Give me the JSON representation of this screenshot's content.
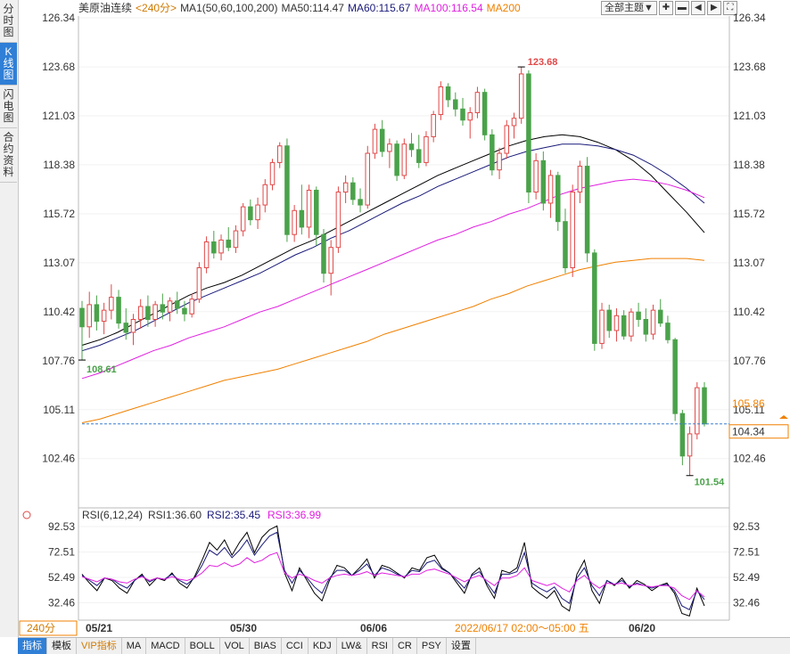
{
  "side_tabs": [
    "分时图",
    "K线图",
    "闪电图",
    "合约资料"
  ],
  "header": {
    "instrument": "美原油连续",
    "period": "<240分>",
    "ma_label": "MA1(50,60,100,200)",
    "ma50": "MA50:114.47",
    "ma60": "MA60:115.67",
    "ma100": "MA100:116.54",
    "ma200": "MA200",
    "theme_button": "全部主题▼"
  },
  "rsi_header": {
    "label": "RSI(6,12,24)",
    "rsi1": "RSI1:36.60",
    "rsi2": "RSI2:35.45",
    "rsi3": "RSI3:36.99"
  },
  "price_ticks": [
    "126.34",
    "123.68",
    "121.03",
    "118.38",
    "115.72",
    "113.07",
    "110.42",
    "107.76",
    "105.11",
    "102.46"
  ],
  "rsi_ticks": [
    "92.53",
    "72.51",
    "52.49",
    "32.46"
  ],
  "annotations": {
    "high": "123.68",
    "low": "101.54",
    "local_low": "108.61",
    "right_label_upper": "105.86",
    "last_price": "104.34"
  },
  "x_labels": {
    "period_button": "240分",
    "d1": "05/21",
    "d2": "05/30",
    "d3": "06/06",
    "cursor_time": "2022/06/17 02:00～05:00 五",
    "d4": "06/20"
  },
  "bottom_tabs": [
    "指标",
    "模板",
    "VIP指标",
    "MA",
    "MACD",
    "BOLL",
    "VOL",
    "BIAS",
    "CCI",
    "KDJ",
    "LW&",
    "RSI",
    "CR",
    "PSY",
    "设置"
  ],
  "colors": {
    "up": "#e04848",
    "down": "#4aa24a",
    "ma50": "#000000",
    "ma60": "#1a1a7a",
    "ma100": "#e020e0",
    "ma200": "#f08000",
    "high_label": "#e04848",
    "low_label": "#4aa24a",
    "last_price_line": "#3a7fd0"
  },
  "chart_data": {
    "type": "candlestick",
    "y_range": [
      101.0,
      127.0
    ],
    "last_price": 104.34,
    "x_dates": [
      "05/21",
      "05/30",
      "06/06",
      "06/20"
    ],
    "candles_ohlc": [
      [
        110.6,
        111.0,
        107.8,
        109.6
      ],
      [
        109.6,
        111.5,
        109.0,
        110.8
      ],
      [
        110.8,
        111.3,
        109.4,
        109.9
      ],
      [
        109.9,
        110.9,
        109.2,
        110.5
      ],
      [
        110.5,
        111.9,
        110.0,
        111.2
      ],
      [
        111.2,
        111.6,
        109.5,
        109.8
      ],
      [
        109.8,
        110.6,
        108.9,
        109.3
      ],
      [
        109.3,
        110.3,
        108.61,
        110.0
      ],
      [
        110.0,
        111.1,
        109.5,
        110.7
      ],
      [
        110.7,
        111.3,
        109.6,
        110.0
      ],
      [
        110.0,
        111.0,
        109.6,
        110.8
      ],
      [
        110.8,
        111.4,
        110.0,
        110.4
      ],
      [
        110.4,
        111.2,
        109.9,
        111.0
      ],
      [
        111.0,
        111.5,
        110.3,
        110.6
      ],
      [
        110.6,
        111.0,
        109.9,
        110.3
      ],
      [
        110.3,
        111.4,
        110.1,
        111.1
      ],
      [
        111.1,
        113.1,
        110.9,
        112.8
      ],
      [
        112.8,
        114.5,
        112.5,
        114.2
      ],
      [
        114.2,
        114.8,
        113.3,
        113.6
      ],
      [
        113.6,
        114.6,
        113.2,
        114.3
      ],
      [
        114.3,
        115.0,
        113.7,
        113.9
      ],
      [
        113.9,
        115.1,
        113.6,
        114.8
      ],
      [
        114.8,
        116.3,
        114.5,
        116.1
      ],
      [
        116.1,
        116.5,
        115.1,
        115.4
      ],
      [
        115.4,
        116.6,
        114.9,
        116.2
      ],
      [
        116.2,
        117.6,
        115.8,
        117.3
      ],
      [
        117.3,
        118.7,
        117.0,
        118.5
      ],
      [
        118.5,
        119.6,
        118.2,
        119.4
      ],
      [
        119.4,
        119.8,
        114.2,
        114.6
      ],
      [
        114.6,
        116.2,
        114.2,
        115.9
      ],
      [
        115.9,
        117.3,
        114.6,
        115.0
      ],
      [
        115.0,
        117.3,
        114.4,
        117.0
      ],
      [
        117.0,
        117.2,
        114.0,
        114.6
      ],
      [
        114.6,
        114.9,
        112.0,
        112.5
      ],
      [
        112.5,
        114.3,
        111.3,
        113.9
      ],
      [
        113.9,
        117.2,
        113.6,
        116.9
      ],
      [
        116.9,
        117.8,
        116.3,
        117.4
      ],
      [
        117.4,
        117.7,
        116.2,
        116.5
      ],
      [
        116.5,
        117.1,
        115.8,
        116.2
      ],
      [
        116.2,
        119.4,
        116.0,
        119.0
      ],
      [
        119.0,
        120.6,
        118.7,
        120.3
      ],
      [
        120.3,
        120.8,
        118.8,
        119.1
      ],
      [
        119.1,
        119.8,
        118.2,
        119.5
      ],
      [
        119.5,
        119.7,
        117.5,
        117.8
      ],
      [
        117.8,
        119.8,
        117.6,
        119.5
      ],
      [
        119.5,
        120.1,
        118.8,
        119.2
      ],
      [
        119.2,
        120.0,
        118.2,
        118.5
      ],
      [
        118.5,
        120.2,
        118.3,
        119.9
      ],
      [
        119.9,
        121.3,
        119.6,
        121.1
      ],
      [
        121.1,
        122.9,
        120.8,
        122.6
      ],
      [
        122.6,
        122.8,
        121.5,
        121.9
      ],
      [
        121.9,
        122.3,
        121.0,
        121.4
      ],
      [
        121.4,
        122.0,
        120.5,
        120.8
      ],
      [
        120.8,
        121.5,
        119.8,
        121.2
      ],
      [
        121.2,
        122.6,
        120.9,
        122.3
      ],
      [
        122.3,
        122.5,
        119.7,
        120.0
      ],
      [
        120.0,
        120.3,
        117.8,
        118.1
      ],
      [
        118.1,
        119.3,
        117.6,
        119.0
      ],
      [
        119.0,
        120.8,
        118.7,
        120.5
      ],
      [
        120.5,
        121.2,
        119.8,
        120.9
      ],
      [
        120.9,
        123.68,
        120.6,
        123.3
      ],
      [
        123.3,
        123.5,
        116.3,
        116.9
      ],
      [
        116.9,
        119.0,
        116.5,
        118.6
      ],
      [
        118.6,
        119.1,
        115.9,
        116.3
      ],
      [
        116.3,
        118.1,
        115.5,
        117.8
      ],
      [
        117.8,
        118.0,
        114.8,
        115.3
      ],
      [
        115.3,
        116.0,
        112.5,
        112.8
      ],
      [
        112.8,
        117.3,
        112.3,
        116.9
      ],
      [
        116.9,
        118.6,
        116.3,
        118.3
      ],
      [
        118.3,
        118.8,
        113.1,
        113.6
      ],
      [
        113.6,
        113.8,
        108.3,
        108.7
      ],
      [
        108.7,
        110.9,
        108.4,
        110.5
      ],
      [
        110.5,
        110.8,
        109.0,
        109.4
      ],
      [
        109.4,
        110.6,
        108.8,
        110.2
      ],
      [
        110.2,
        110.5,
        108.9,
        109.1
      ],
      [
        109.1,
        110.6,
        108.8,
        110.4
      ],
      [
        110.4,
        110.9,
        109.6,
        110.0
      ],
      [
        110.0,
        110.6,
        108.8,
        109.2
      ],
      [
        109.2,
        110.8,
        108.9,
        110.5
      ],
      [
        110.5,
        111.1,
        109.6,
        109.8
      ],
      [
        109.8,
        110.2,
        108.7,
        108.9
      ],
      [
        108.9,
        109.0,
        104.5,
        104.9
      ],
      [
        104.9,
        105.1,
        102.1,
        102.6
      ],
      [
        102.6,
        104.2,
        101.54,
        103.8
      ],
      [
        103.8,
        106.6,
        103.5,
        106.3
      ],
      [
        106.3,
        106.6,
        104.2,
        104.34
      ]
    ],
    "ma_series": [
      {
        "name": "MA50",
        "color": "#000000",
        "x_start": 0,
        "values": [
          108.6,
          108.9,
          109.3,
          109.8,
          110.3,
          110.8,
          111.3,
          111.7,
          112.0,
          112.4,
          112.9,
          113.4,
          113.9,
          114.3,
          114.8,
          115.3,
          115.8,
          116.3,
          116.8,
          117.3,
          117.8,
          118.2,
          118.6,
          119.0,
          119.4,
          119.7,
          119.9,
          120.0,
          119.9,
          119.6,
          119.2,
          118.6,
          117.8,
          116.8,
          115.8,
          114.7
        ]
      },
      {
        "name": "MA60",
        "color": "#1a1a7a",
        "x_start": 0,
        "values": [
          108.3,
          108.6,
          109.0,
          109.4,
          109.9,
          110.4,
          110.9,
          111.3,
          111.7,
          112.1,
          112.5,
          113.0,
          113.5,
          113.9,
          114.4,
          114.8,
          115.3,
          115.8,
          116.3,
          116.7,
          117.2,
          117.6,
          118.0,
          118.4,
          118.8,
          119.1,
          119.3,
          119.5,
          119.5,
          119.4,
          119.2,
          118.9,
          118.4,
          117.8,
          117.1,
          116.3
        ]
      },
      {
        "name": "MA100",
        "color": "#e020e0",
        "x_start": 0,
        "values": [
          106.8,
          107.1,
          107.5,
          107.9,
          108.3,
          108.6,
          109.0,
          109.3,
          109.6,
          110.0,
          110.4,
          110.7,
          111.1,
          111.5,
          111.9,
          112.3,
          112.7,
          113.1,
          113.5,
          113.9,
          114.3,
          114.6,
          115.0,
          115.3,
          115.7,
          116.0,
          116.4,
          116.8,
          117.1,
          117.3,
          117.5,
          117.6,
          117.5,
          117.3,
          117.0,
          116.6
        ]
      },
      {
        "name": "MA200",
        "color": "#f08000",
        "x_start": 0,
        "values": [
          104.4,
          104.6,
          104.9,
          105.2,
          105.5,
          105.8,
          106.1,
          106.4,
          106.7,
          106.9,
          107.1,
          107.3,
          107.6,
          107.9,
          108.2,
          108.5,
          108.8,
          109.2,
          109.5,
          109.8,
          110.1,
          110.4,
          110.7,
          111.1,
          111.4,
          111.8,
          112.1,
          112.4,
          112.7,
          112.9,
          113.1,
          113.2,
          113.3,
          113.3,
          113.3,
          113.2
        ]
      }
    ],
    "rsi": {
      "y_range": [
        20,
        100
      ],
      "series": [
        {
          "name": "RSI1",
          "color": "#000000",
          "values": [
            55,
            48,
            42,
            52,
            50,
            44,
            40,
            50,
            55,
            46,
            52,
            50,
            56,
            48,
            44,
            53,
            66,
            80,
            74,
            82,
            70,
            80,
            88,
            72,
            84,
            90,
            93,
            56,
            42,
            60,
            50,
            40,
            34,
            50,
            62,
            60,
            54,
            60,
            67,
            52,
            62,
            60,
            56,
            52,
            60,
            58,
            68,
            70,
            60,
            56,
            48,
            40,
            55,
            60,
            46,
            36,
            58,
            56,
            60,
            80,
            45,
            40,
            36,
            42,
            30,
            26,
            55,
            66,
            42,
            32,
            50,
            46,
            52,
            44,
            50,
            47,
            42,
            46,
            48,
            40,
            24,
            22,
            44,
            30
          ]
        },
        {
          "name": "RSI2",
          "color": "#1a1a7a",
          "values": [
            54,
            50,
            46,
            52,
            51,
            47,
            44,
            50,
            54,
            49,
            52,
            51,
            55,
            50,
            47,
            52,
            62,
            74,
            70,
            76,
            68,
            74,
            82,
            70,
            78,
            85,
            88,
            58,
            48,
            58,
            52,
            45,
            40,
            52,
            58,
            58,
            54,
            58,
            63,
            54,
            60,
            58,
            55,
            53,
            58,
            57,
            64,
            66,
            59,
            56,
            50,
            44,
            54,
            57,
            48,
            40,
            55,
            55,
            57,
            72,
            48,
            44,
            41,
            45,
            36,
            32,
            52,
            60,
            46,
            38,
            50,
            47,
            50,
            45,
            48,
            46,
            44,
            46,
            47,
            42,
            30,
            27,
            42,
            35
          ]
        },
        {
          "name": "RSI3",
          "color": "#e020e0",
          "values": [
            53,
            51,
            49,
            52,
            51,
            49,
            48,
            51,
            53,
            50,
            52,
            51,
            53,
            51,
            50,
            52,
            56,
            62,
            61,
            64,
            61,
            63,
            68,
            64,
            66,
            70,
            72,
            56,
            52,
            55,
            53,
            50,
            48,
            52,
            54,
            55,
            54,
            55,
            57,
            54,
            56,
            55,
            54,
            53,
            55,
            55,
            58,
            59,
            57,
            55,
            52,
            49,
            52,
            54,
            50,
            46,
            52,
            52,
            54,
            60,
            50,
            48,
            46,
            48,
            44,
            41,
            50,
            54,
            48,
            44,
            48,
            47,
            48,
            46,
            47,
            46,
            45,
            46,
            46,
            44,
            38,
            35,
            42,
            37
          ]
        }
      ]
    }
  }
}
